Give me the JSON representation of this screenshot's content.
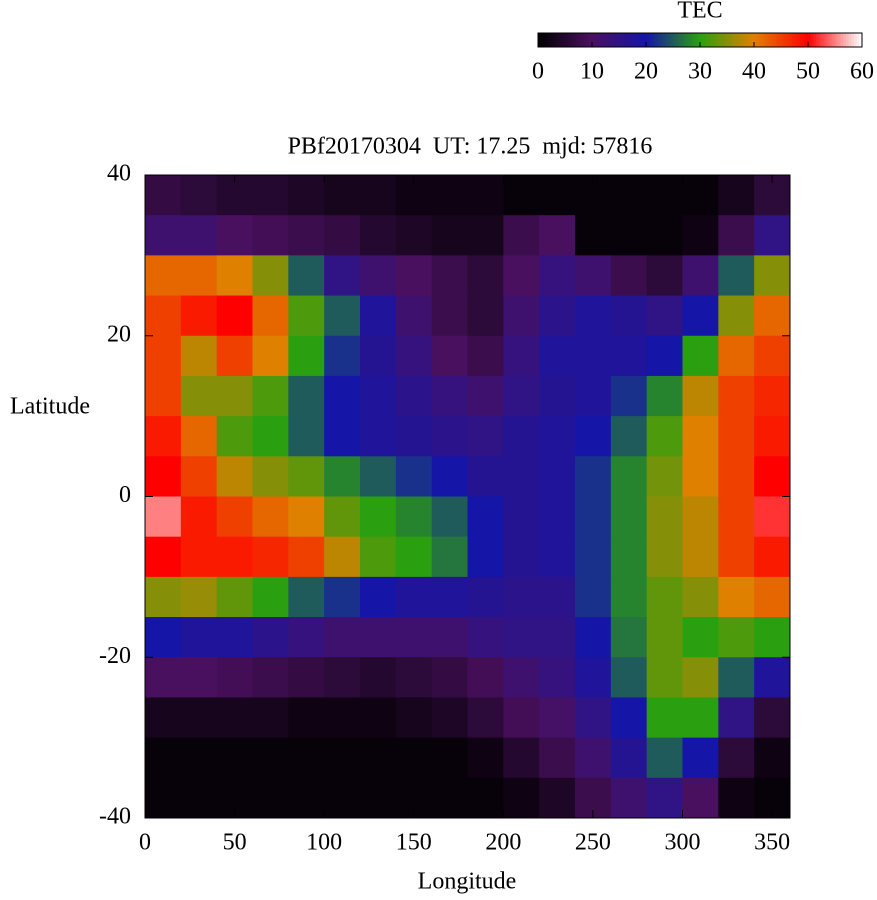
{
  "chart_data": {
    "type": "heatmap",
    "title": "PBf20170304  UT: 17.25  mjd: 57816",
    "x_label": "Longitude",
    "y_label": "Latitude",
    "colorbar_label": "TEC",
    "x": [
      10,
      30,
      50,
      70,
      90,
      110,
      130,
      150,
      170,
      190,
      210,
      230,
      250,
      270,
      290,
      310,
      330,
      350
    ],
    "y": [
      37.5,
      32.5,
      27.5,
      22.5,
      17.5,
      12.5,
      7.5,
      2.5,
      -2.5,
      -7.5,
      -12.5,
      -17.5,
      -22.5,
      -27.5,
      -32.5,
      -37.5
    ],
    "z": [
      [
        7,
        6,
        5,
        5,
        4,
        3,
        3,
        2,
        2,
        2,
        1,
        1,
        1,
        1,
        1,
        1,
        3,
        6
      ],
      [
        12,
        12,
        10,
        9,
        8,
        7,
        5,
        4,
        3,
        3,
        8,
        10,
        1,
        1,
        1,
        2,
        8,
        15
      ],
      [
        42,
        42,
        40,
        35,
        25,
        15,
        12,
        10,
        8,
        6,
        10,
        14,
        12,
        8,
        6,
        12,
        25,
        35
      ],
      [
        45,
        48,
        50,
        42,
        32,
        25,
        18,
        12,
        8,
        6,
        12,
        16,
        18,
        17,
        15,
        20,
        35,
        42
      ],
      [
        45,
        38,
        45,
        40,
        30,
        22,
        17,
        14,
        10,
        8,
        14,
        18,
        18,
        18,
        20,
        30,
        42,
        45
      ],
      [
        45,
        35,
        35,
        32,
        25,
        20,
        18,
        16,
        14,
        12,
        15,
        17,
        18,
        22,
        28,
        38,
        45,
        47
      ],
      [
        48,
        42,
        32,
        30,
        25,
        20,
        18,
        17,
        16,
        15,
        17,
        18,
        20,
        25,
        32,
        40,
        45,
        48
      ],
      [
        50,
        45,
        38,
        35,
        33,
        28,
        25,
        22,
        20,
        17,
        17,
        18,
        22,
        28,
        34,
        40,
        45,
        50
      ],
      [
        55,
        48,
        45,
        42,
        40,
        33,
        30,
        28,
        25,
        20,
        17,
        18,
        22,
        28,
        35,
        38,
        45,
        52
      ],
      [
        50,
        48,
        48,
        47,
        45,
        38,
        32,
        30,
        27,
        20,
        17,
        18,
        22,
        28,
        35,
        38,
        45,
        48
      ],
      [
        35,
        36,
        33,
        30,
        25,
        22,
        20,
        18,
        18,
        17,
        16,
        16,
        22,
        28,
        33,
        35,
        40,
        42
      ],
      [
        20,
        18,
        18,
        16,
        14,
        12,
        12,
        12,
        12,
        14,
        15,
        15,
        20,
        27,
        33,
        30,
        32,
        30
      ],
      [
        10,
        10,
        9,
        8,
        7,
        6,
        5,
        6,
        7,
        9,
        12,
        14,
        18,
        25,
        33,
        35,
        25,
        18
      ],
      [
        3,
        3,
        3,
        3,
        2,
        2,
        2,
        3,
        4,
        6,
        9,
        11,
        15,
        20,
        30,
        30,
        15,
        6
      ],
      [
        1,
        1,
        1,
        1,
        1,
        1,
        1,
        1,
        1,
        2,
        5,
        8,
        12,
        17,
        25,
        20,
        6,
        2
      ],
      [
        1,
        1,
        1,
        1,
        1,
        1,
        1,
        1,
        1,
        1,
        2,
        4,
        8,
        12,
        15,
        10,
        2,
        1
      ]
    ],
    "xlim": [
      0,
      360
    ],
    "xticks": [
      0,
      50,
      100,
      150,
      200,
      250,
      300,
      350
    ],
    "ylim": [
      -40,
      40
    ],
    "yticks": [
      -40,
      -20,
      0,
      20,
      40
    ],
    "zlim": [
      0,
      60
    ],
    "zticks": [
      0,
      10,
      20,
      30,
      40,
      50,
      60
    ],
    "colormap": [
      "#000000",
      "#4a1060",
      "#1515a8",
      "#2aa010",
      "#e08000",
      "#ff0000",
      "#ffffff"
    ]
  }
}
